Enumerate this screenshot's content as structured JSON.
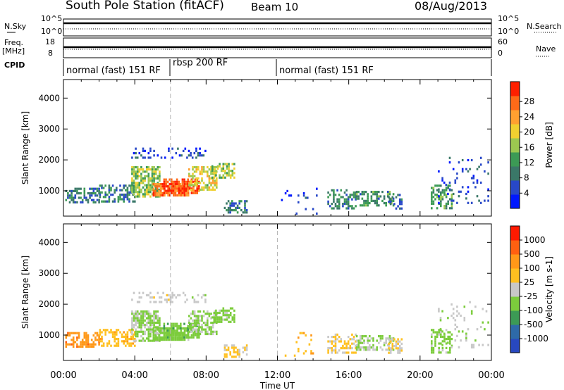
{
  "header": {
    "station": "South Pole Station (fitACF)",
    "beam": "Beam 10",
    "date": "08/Aug/2013"
  },
  "top_panels": {
    "nsky_label": "N.Sky",
    "nsearch_label": "N.Search",
    "freq_label": "Freq.",
    "freq_unit": "[MHz]",
    "nave_label": "Nave",
    "cpid_label": "CPID",
    "noise_ticks_left": [
      "10^5",
      "10^0"
    ],
    "noise_ticks_right": [
      "10^5",
      "10^0"
    ],
    "freq_ticks": [
      "18",
      "8"
    ],
    "nave_ticks": [
      "60",
      "0"
    ]
  },
  "cpid_segments": [
    {
      "label": "normal (fast) 151 RF",
      "start": "00:00",
      "end": "06:00"
    },
    {
      "label": "rbsp 200 RF",
      "start": "06:00",
      "end": "12:00"
    },
    {
      "label": "normal (fast) 151 RF",
      "start": "12:00",
      "end": "24:00"
    }
  ],
  "x_axis": {
    "label": "Time UT",
    "ticks": [
      "00:00",
      "04:00",
      "08:00",
      "12:00",
      "16:00",
      "20:00",
      "00:00"
    ]
  },
  "chart_data": [
    {
      "type": "heatmap",
      "panel": "power",
      "ylabel": "Slant Range [km]",
      "ylim": [
        180,
        4600
      ],
      "yticks": [
        1000,
        2000,
        3000,
        4000
      ],
      "xlim_hours": [
        0,
        24
      ],
      "colorbar": {
        "label": "Power [dB]",
        "tick_labels": [
          "4",
          "8",
          "12",
          "16",
          "20",
          "24",
          "28"
        ],
        "range": [
          0,
          30
        ],
        "colors": [
          "#0018ff",
          "#2848c8",
          "#3a7868",
          "#3c9a55",
          "#9cc850",
          "#f0d030",
          "#ffa030",
          "#ff6a18",
          "#ff2000"
        ]
      },
      "blobs": [
        {
          "t0": 0.1,
          "t1": 2.0,
          "r0": 600,
          "r1": 1100,
          "value": 8,
          "density": 0.55
        },
        {
          "t0": 2.0,
          "t1": 4.0,
          "r0": 650,
          "r1": 1200,
          "value": 9,
          "density": 0.55
        },
        {
          "t0": 3.8,
          "t1": 5.4,
          "r0": 800,
          "r1": 1800,
          "value": 14,
          "density": 0.7
        },
        {
          "t0": 5.0,
          "t1": 7.0,
          "r0": 850,
          "r1": 1250,
          "value": 24,
          "density": 0.85
        },
        {
          "t0": 5.6,
          "t1": 7.6,
          "r0": 950,
          "r1": 1400,
          "value": 27,
          "density": 0.7
        },
        {
          "t0": 7.0,
          "t1": 8.6,
          "r0": 1000,
          "r1": 1800,
          "value": 17,
          "density": 0.6
        },
        {
          "t0": 8.3,
          "t1": 9.6,
          "r0": 1400,
          "r1": 1900,
          "value": 15,
          "density": 0.6
        },
        {
          "t0": 3.8,
          "t1": 8.0,
          "r0": 2050,
          "r1": 2400,
          "value": 5,
          "density": 0.25
        },
        {
          "t0": 9.0,
          "t1": 10.3,
          "r0": 300,
          "r1": 700,
          "value": 8,
          "density": 0.45
        },
        {
          "t0": 12.2,
          "t1": 14.2,
          "r0": 250,
          "r1": 1100,
          "value": 3,
          "density": 0.06
        },
        {
          "t0": 14.8,
          "t1": 16.4,
          "r0": 450,
          "r1": 1050,
          "value": 9,
          "density": 0.5
        },
        {
          "t0": 16.4,
          "t1": 18.5,
          "r0": 500,
          "r1": 1000,
          "value": 10,
          "density": 0.55
        },
        {
          "t0": 18.2,
          "t1": 19.0,
          "r0": 450,
          "r1": 900,
          "value": 7,
          "density": 0.4
        },
        {
          "t0": 20.6,
          "t1": 21.8,
          "r0": 400,
          "r1": 1200,
          "value": 11,
          "density": 0.5
        },
        {
          "t0": 21.0,
          "t1": 23.8,
          "r0": 600,
          "r1": 2100,
          "value": 5,
          "density": 0.12
        }
      ]
    },
    {
      "type": "heatmap",
      "panel": "velocity",
      "ylabel": "Slant Range [km]",
      "ylim": [
        180,
        4600
      ],
      "yticks": [
        1000,
        2000,
        3000,
        4000
      ],
      "xlim_hours": [
        0,
        24
      ],
      "colorbar": {
        "label": "Velocity [m s-1]",
        "tick_labels": [
          "1000",
          "500",
          "100",
          "25",
          "-25",
          "-100",
          "-500",
          "-1000"
        ],
        "range": [
          -1200,
          1200
        ],
        "colors": [
          "#2848c0",
          "#2e6aa8",
          "#3c9a55",
          "#7ccc3c",
          "#c8c8c8",
          "#ffc020",
          "#ff9818",
          "#ff6010",
          "#ff1a00"
        ]
      },
      "blobs": [
        {
          "t0": 0.1,
          "t1": 2.0,
          "r0": 600,
          "r1": 1100,
          "value": 550,
          "density": 0.55
        },
        {
          "t0": 2.0,
          "t1": 4.0,
          "r0": 650,
          "r1": 1200,
          "value": 300,
          "density": 0.55
        },
        {
          "t0": 3.8,
          "t1": 5.4,
          "r0": 800,
          "r1": 1800,
          "value": -150,
          "density": 0.7
        },
        {
          "t0": 5.0,
          "t1": 7.0,
          "r0": 850,
          "r1": 1250,
          "value": -250,
          "density": 0.85
        },
        {
          "t0": 5.6,
          "t1": 7.6,
          "r0": 950,
          "r1": 1400,
          "value": -300,
          "density": 0.7
        },
        {
          "t0": 7.0,
          "t1": 8.6,
          "r0": 1000,
          "r1": 1800,
          "value": -200,
          "density": 0.6
        },
        {
          "t0": 8.3,
          "t1": 9.6,
          "r0": 1400,
          "r1": 1900,
          "value": -250,
          "density": 0.6
        },
        {
          "t0": 3.8,
          "t1": 8.0,
          "r0": 2050,
          "r1": 2400,
          "value": 0,
          "density": 0.25
        },
        {
          "t0": 9.0,
          "t1": 10.3,
          "r0": 300,
          "r1": 700,
          "value": 150,
          "density": 0.45
        },
        {
          "t0": 12.2,
          "t1": 14.2,
          "r0": 250,
          "r1": 1100,
          "value": 300,
          "density": 0.06
        },
        {
          "t0": 14.8,
          "t1": 16.4,
          "r0": 450,
          "r1": 1050,
          "value": 200,
          "density": 0.5
        },
        {
          "t0": 16.4,
          "t1": 18.5,
          "r0": 500,
          "r1": 1000,
          "value": -150,
          "density": 0.55
        },
        {
          "t0": 18.2,
          "t1": 19.0,
          "r0": 450,
          "r1": 900,
          "value": 150,
          "density": 0.4
        },
        {
          "t0": 20.6,
          "t1": 21.8,
          "r0": 400,
          "r1": 1200,
          "value": -250,
          "density": 0.5
        },
        {
          "t0": 21.0,
          "t1": 23.8,
          "r0": 600,
          "r1": 2100,
          "value": -100,
          "density": 0.12
        }
      ]
    }
  ]
}
